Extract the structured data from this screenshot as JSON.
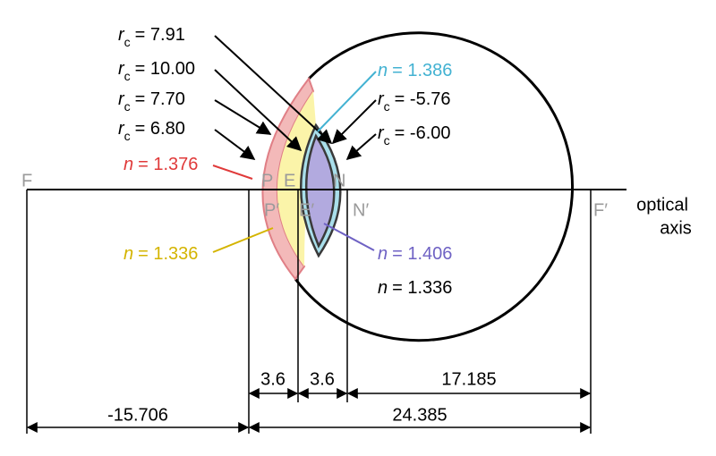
{
  "radius_labels": [
    {
      "symbol": "r",
      "subscript": "c",
      "text": "= 7.91"
    },
    {
      "symbol": "r",
      "subscript": "c",
      "text": "= 10.00"
    },
    {
      "symbol": "r",
      "subscript": "c",
      "text": "= 7.70"
    },
    {
      "symbol": "r",
      "subscript": "c",
      "text": "= 6.80"
    },
    {
      "symbol": "r",
      "subscript": "c",
      "text": "= -5.76"
    },
    {
      "symbol": "r",
      "subscript": "c",
      "text": "= -6.00"
    }
  ],
  "index_labels": [
    {
      "symbol": "n",
      "text": "= 1.386"
    },
    {
      "symbol": "n",
      "text": "= 1.376"
    },
    {
      "symbol": "n",
      "text": "= 1.336"
    },
    {
      "symbol": "n",
      "text": "= 1.406"
    },
    {
      "symbol": "n",
      "text": "= 1.336"
    }
  ],
  "points": [
    "F",
    "P",
    "E",
    "N",
    "P′",
    "E′",
    "N′",
    "F′"
  ],
  "axis_label": [
    "optical",
    "axis"
  ],
  "dimensions": [
    "3.6",
    "3.6",
    "17.185",
    "-15.706",
    "24.385"
  ]
}
